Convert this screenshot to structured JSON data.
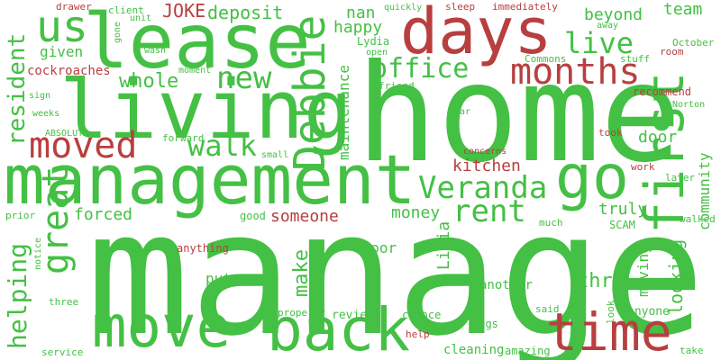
{
  "colors": {
    "green": "#44c044",
    "red": "#b83f3f",
    "background": "#ffffff"
  },
  "words": [
    {
      "id": "manager",
      "text": "manager",
      "color": "green"
    },
    {
      "id": "home",
      "text": "home",
      "color": "green"
    },
    {
      "id": "management",
      "text": "management",
      "color": "green"
    },
    {
      "id": "lease",
      "text": "lease",
      "color": "green"
    },
    {
      "id": "living",
      "text": "living",
      "color": "green"
    },
    {
      "id": "days",
      "text": "days",
      "color": "red"
    },
    {
      "id": "move",
      "text": "move",
      "color": "green"
    },
    {
      "id": "back",
      "text": "back",
      "color": "green"
    },
    {
      "id": "time",
      "text": "time",
      "color": "red"
    },
    {
      "id": "first",
      "text": "first",
      "color": "green"
    },
    {
      "id": "go",
      "text": "go",
      "color": "green"
    },
    {
      "id": "moved",
      "text": "moved",
      "color": "red"
    },
    {
      "id": "debbie",
      "text": "Debbie",
      "color": "green"
    },
    {
      "id": "great",
      "text": "great",
      "color": "green"
    },
    {
      "id": "us",
      "text": "us",
      "color": "green"
    },
    {
      "id": "months",
      "text": "months",
      "color": "red"
    },
    {
      "id": "office",
      "text": "office",
      "color": "green"
    },
    {
      "id": "live",
      "text": "live",
      "color": "green"
    },
    {
      "id": "veranda",
      "text": "Veranda",
      "color": "green"
    },
    {
      "id": "rent",
      "text": "rent",
      "color": "green"
    },
    {
      "id": "walk",
      "text": "walk",
      "color": "green"
    },
    {
      "id": "new",
      "text": "new",
      "color": "green"
    },
    {
      "id": "resident",
      "text": "resident",
      "color": "green"
    },
    {
      "id": "helping",
      "text": "helping",
      "color": "green"
    },
    {
      "id": "whole",
      "text": "whole",
      "color": "green"
    },
    {
      "id": "deposit",
      "text": "deposit",
      "color": "green"
    },
    {
      "id": "joke",
      "text": "JOKE",
      "color": "red"
    },
    {
      "id": "nan",
      "text": "nan",
      "color": "green"
    },
    {
      "id": "happy",
      "text": "happy",
      "color": "green"
    },
    {
      "id": "maintenance",
      "text": "maintenance",
      "color": "green"
    },
    {
      "id": "kitchen",
      "text": "kitchen",
      "color": "red"
    },
    {
      "id": "someone",
      "text": "someone",
      "color": "red"
    },
    {
      "id": "forced",
      "text": "forced",
      "color": "green"
    },
    {
      "id": "money",
      "text": "money",
      "color": "green"
    },
    {
      "id": "truly",
      "text": "truly",
      "color": "green"
    },
    {
      "id": "door",
      "text": "door",
      "color": "green"
    },
    {
      "id": "lidia",
      "text": "Lidia",
      "color": "green"
    },
    {
      "id": "make",
      "text": "make",
      "color": "green"
    },
    {
      "id": "thru",
      "text": "thru",
      "color": "green"
    },
    {
      "id": "moving",
      "text": "moving",
      "color": "green"
    },
    {
      "id": "looking",
      "text": "looking",
      "color": "green"
    },
    {
      "id": "community",
      "text": "community",
      "color": "green"
    },
    {
      "id": "beyond",
      "text": "beyond",
      "color": "green"
    },
    {
      "id": "team",
      "text": "team",
      "color": "green"
    },
    {
      "id": "given",
      "text": "given",
      "color": "green"
    },
    {
      "id": "cockroaches",
      "text": "cockroaches",
      "color": "red"
    },
    {
      "id": "drawer",
      "text": "drawer",
      "color": "red"
    },
    {
      "id": "client",
      "text": "client",
      "color": "green"
    },
    {
      "id": "unit",
      "text": "unit",
      "color": "green"
    },
    {
      "id": "quickly",
      "text": "quickly",
      "color": "green"
    },
    {
      "id": "sleep",
      "text": "sleep",
      "color": "red"
    },
    {
      "id": "immediately",
      "text": "immediately",
      "color": "red"
    },
    {
      "id": "away",
      "text": "away",
      "color": "green"
    },
    {
      "id": "october",
      "text": "October",
      "color": "green"
    },
    {
      "id": "room",
      "text": "room",
      "color": "red"
    },
    {
      "id": "stuff",
      "text": "stuff",
      "color": "green"
    },
    {
      "id": "commons",
      "text": "Commons",
      "color": "green"
    },
    {
      "id": "lydia",
      "text": "Lydia",
      "color": "green"
    },
    {
      "id": "open",
      "text": "open",
      "color": "green"
    },
    {
      "id": "friend",
      "text": "friend",
      "color": "green"
    },
    {
      "id": "recommend",
      "text": "recommend",
      "color": "red"
    },
    {
      "id": "norton",
      "text": "Norton",
      "color": "green"
    },
    {
      "id": "took",
      "text": "took",
      "color": "red"
    },
    {
      "id": "far",
      "text": "far",
      "color": "green"
    },
    {
      "id": "concerns",
      "text": "concerns",
      "color": "red"
    },
    {
      "id": "work",
      "text": "work",
      "color": "red"
    },
    {
      "id": "later",
      "text": "later",
      "color": "green"
    },
    {
      "id": "walked",
      "text": "walked",
      "color": "green"
    },
    {
      "id": "much",
      "text": "much",
      "color": "green"
    },
    {
      "id": "scam",
      "text": "SCAM",
      "color": "green"
    },
    {
      "id": "good",
      "text": "good",
      "color": "green"
    },
    {
      "id": "anything",
      "text": "anything",
      "color": "red"
    },
    {
      "id": "floor",
      "text": "floor",
      "color": "green"
    },
    {
      "id": "prior",
      "text": "prior",
      "color": "green"
    },
    {
      "id": "notice",
      "text": "notice",
      "color": "green"
    },
    {
      "id": "fiance",
      "text": "fiance",
      "color": "green"
    },
    {
      "id": "put",
      "text": "put",
      "color": "green"
    },
    {
      "id": "another",
      "text": "another",
      "color": "green"
    },
    {
      "id": "saw",
      "text": "saw",
      "color": "green"
    },
    {
      "id": "said",
      "text": "said",
      "color": "green"
    },
    {
      "id": "look",
      "text": "look",
      "color": "green"
    },
    {
      "id": "anyone",
      "text": "anyone",
      "color": "green"
    },
    {
      "id": "three",
      "text": "three",
      "color": "green"
    },
    {
      "id": "property",
      "text": "property",
      "color": "green"
    },
    {
      "id": "reviews",
      "text": "reviews",
      "color": "green"
    },
    {
      "id": "chance",
      "text": "chance",
      "color": "green"
    },
    {
      "id": "bugs",
      "text": "bugs",
      "color": "green"
    },
    {
      "id": "help",
      "text": "help",
      "color": "red"
    },
    {
      "id": "service",
      "text": "service",
      "color": "green"
    },
    {
      "id": "cleaning",
      "text": "cleaning",
      "color": "green"
    },
    {
      "id": "amazing",
      "text": "amazing",
      "color": "green"
    },
    {
      "id": "take",
      "text": "take",
      "color": "green"
    },
    {
      "id": "absolute",
      "text": "ABSOLUTE",
      "color": "green"
    },
    {
      "id": "weeks",
      "text": "weeks",
      "color": "green"
    },
    {
      "id": "sign",
      "text": "sign",
      "color": "green"
    },
    {
      "id": "forward",
      "text": "forward",
      "color": "green"
    },
    {
      "id": "small",
      "text": "small",
      "color": "green"
    },
    {
      "id": "moment",
      "text": "moment",
      "color": "green"
    },
    {
      "id": "wasn",
      "text": "wasn",
      "color": "green"
    },
    {
      "id": "gone",
      "text": "gone",
      "color": "green"
    }
  ]
}
